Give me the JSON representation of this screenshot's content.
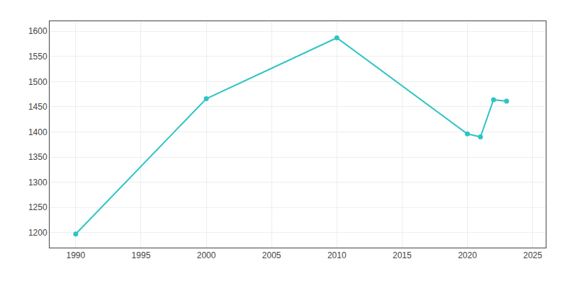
{
  "chart_data": {
    "type": "line",
    "x": [
      1990,
      2000,
      2010,
      2020,
      2021,
      2022,
      2023
    ],
    "values": [
      1197,
      1466,
      1587,
      1396,
      1390,
      1464,
      1461
    ],
    "color": "#2ec4c4",
    "marker": "circle",
    "line_style": "solid",
    "xlim": [
      1988,
      2026
    ],
    "ylim": [
      1170,
      1620
    ],
    "xticks": [
      1990,
      1995,
      2000,
      2005,
      2010,
      2015,
      2020,
      2025
    ],
    "yticks": [
      1200,
      1250,
      1300,
      1350,
      1400,
      1450,
      1500,
      1550,
      1600
    ],
    "grid": true
  }
}
